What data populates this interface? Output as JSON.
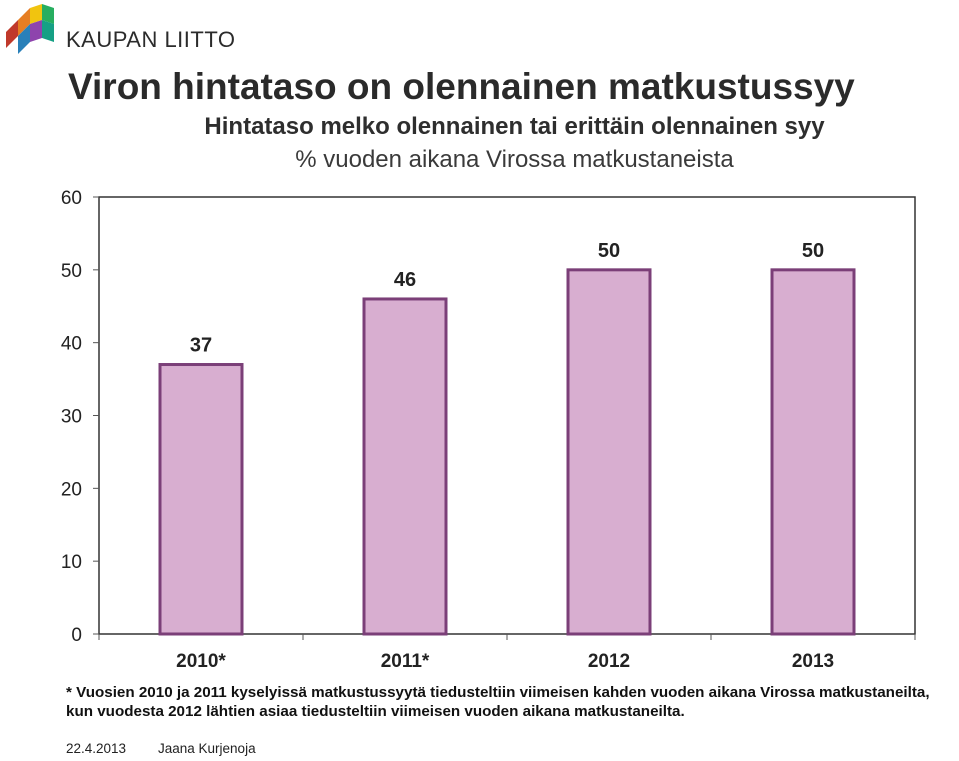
{
  "logo": {
    "text": "KAUPAN LIITTO"
  },
  "colors": {
    "bar_fill": "#d8aed0",
    "bar_stroke": "#7b3f78",
    "axis": "#555555"
  },
  "chart_data": {
    "type": "bar",
    "title": "Viron hintataso on olennainen matkustussyy",
    "subtitle": "Hintataso melko olennainen tai erittäin olennainen syy",
    "subtitle2": "% vuoden aikana Virossa matkustaneista",
    "categories": [
      "2010*",
      "2011*",
      "2012",
      "2013"
    ],
    "values": [
      37,
      46,
      50,
      50
    ],
    "value_labels": [
      "37",
      "46",
      "50",
      "50"
    ],
    "ylim": [
      0,
      60
    ],
    "yticks": [
      "0",
      "10",
      "20",
      "30",
      "40",
      "50",
      "60"
    ],
    "grid": false,
    "xlabel": "",
    "ylabel": ""
  },
  "note": "* Vuosien 2010 ja 2011 kyselyissä matkustussyytä tiedusteltiin viimeisen kahden vuoden aikana Virossa matkustaneilta, kun vuodesta 2012 lähtien asiaa tiedusteltiin viimeisen vuoden aikana matkustaneilta.",
  "footer": {
    "date": "22.4.2013",
    "author": "Jaana Kurjenoja"
  }
}
